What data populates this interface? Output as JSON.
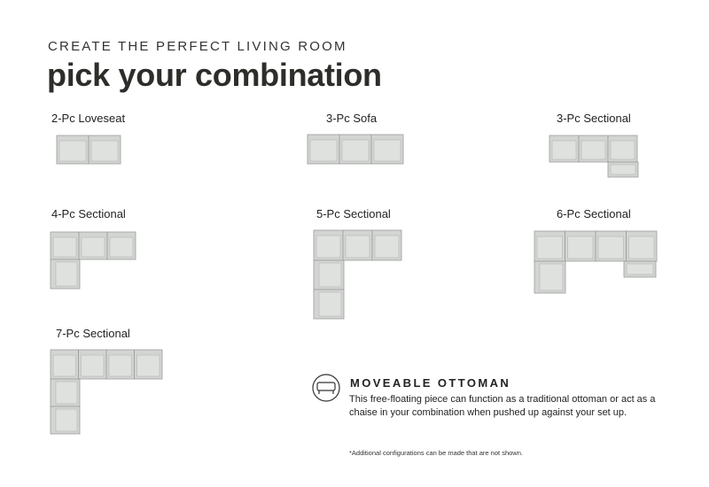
{
  "header": {
    "eyebrow": "CREATE THE PERFECT LIVING ROOM",
    "title": "pick your combination"
  },
  "combinations": [
    {
      "label": "2-Pc Loveseat"
    },
    {
      "label": "3-Pc Sofa"
    },
    {
      "label": "3-Pc Sectional"
    },
    {
      "label": "4-Pc Sectional"
    },
    {
      "label": "5-Pc Sectional"
    },
    {
      "label": "6-Pc Sectional"
    },
    {
      "label": "7-Pc Sectional"
    }
  ],
  "ottoman": {
    "title": "MOVEABLE OTTOMAN",
    "description": "This free-floating piece can function as a traditional ottoman or act as a chaise in your combination when pushed up against your set up."
  },
  "footnote": "*Additional configurations can be made that are not shown."
}
